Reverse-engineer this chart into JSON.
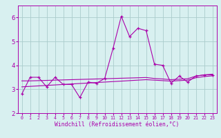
{
  "x": [
    0,
    1,
    2,
    3,
    4,
    5,
    6,
    7,
    8,
    9,
    10,
    11,
    12,
    13,
    14,
    15,
    16,
    17,
    18,
    19,
    20,
    21,
    22,
    23
  ],
  "y_main": [
    2.8,
    3.5,
    3.5,
    3.1,
    3.5,
    3.2,
    3.2,
    2.65,
    3.3,
    3.25,
    3.45,
    4.7,
    6.05,
    5.2,
    5.55,
    5.45,
    4.05,
    4.0,
    3.25,
    3.55,
    3.3,
    3.55,
    3.6,
    3.6
  ],
  "y_trend1": [
    3.35,
    3.35,
    3.36,
    3.37,
    3.38,
    3.39,
    3.4,
    3.41,
    3.42,
    3.43,
    3.44,
    3.45,
    3.46,
    3.47,
    3.48,
    3.49,
    3.45,
    3.43,
    3.4,
    3.42,
    3.44,
    3.55,
    3.6,
    3.63
  ],
  "y_trend2": [
    3.1,
    3.12,
    3.14,
    3.16,
    3.18,
    3.2,
    3.22,
    3.24,
    3.26,
    3.28,
    3.3,
    3.32,
    3.34,
    3.36,
    3.38,
    3.4,
    3.38,
    3.36,
    3.34,
    3.36,
    3.38,
    3.48,
    3.53,
    3.56
  ],
  "line_color": "#aa00aa",
  "bg_color": "#d8f0f0",
  "grid_color": "#aacccc",
  "xlabel": "Windchill (Refroidissement éolien,°C)",
  "ylim": [
    2.0,
    6.5
  ],
  "xlim": [
    -0.5,
    23.5
  ],
  "yticks": [
    2,
    3,
    4,
    5,
    6
  ],
  "xticks": [
    0,
    1,
    2,
    3,
    4,
    5,
    6,
    7,
    8,
    9,
    10,
    11,
    12,
    13,
    14,
    15,
    16,
    17,
    18,
    19,
    20,
    21,
    22,
    23
  ]
}
